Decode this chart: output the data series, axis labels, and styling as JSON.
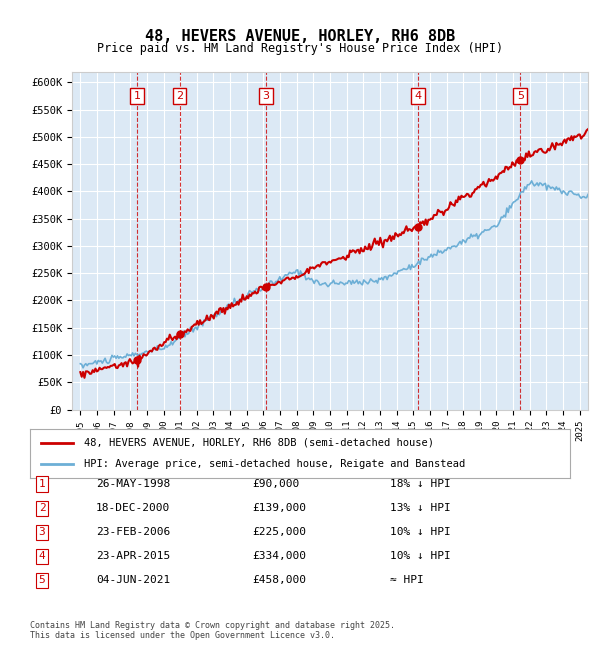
{
  "title": "48, HEVERS AVENUE, HORLEY, RH6 8DB",
  "subtitle": "Price paid vs. HM Land Registry's House Price Index (HPI)",
  "ylabel_ticks": [
    "£0",
    "£50K",
    "£100K",
    "£150K",
    "£200K",
    "£250K",
    "£300K",
    "£350K",
    "£400K",
    "£450K",
    "£500K",
    "£550K",
    "£600K"
  ],
  "ytick_values": [
    0,
    50000,
    100000,
    150000,
    200000,
    250000,
    300000,
    350000,
    400000,
    450000,
    500000,
    550000,
    600000
  ],
  "xlim_start": 1994.5,
  "xlim_end": 2025.5,
  "ylim_min": 0,
  "ylim_max": 620000,
  "background_color": "#dce9f5",
  "plot_bg_color": "#dce9f5",
  "grid_color": "#ffffff",
  "hpi_color": "#6dafd6",
  "price_color": "#cc0000",
  "sale_marker_color": "#cc0000",
  "dashed_line_color": "#cc0000",
  "legend_box_color": "#cc0000",
  "sales": [
    {
      "num": 1,
      "year": 1998.4,
      "price": 90000,
      "date": "26-MAY-1998",
      "note": "18% ↓ HPI"
    },
    {
      "num": 2,
      "year": 2000.96,
      "price": 139000,
      "date": "18-DEC-2000",
      "note": "13% ↓ HPI"
    },
    {
      "num": 3,
      "year": 2006.15,
      "price": 225000,
      "date": "23-FEB-2006",
      "note": "10% ↓ HPI"
    },
    {
      "num": 4,
      "year": 2015.31,
      "price": 334000,
      "date": "23-APR-2015",
      "note": "10% ↓ HPI"
    },
    {
      "num": 5,
      "year": 2021.43,
      "price": 458000,
      "date": "04-JUN-2021",
      "note": "≈ HPI"
    }
  ],
  "legend1_label": "48, HEVERS AVENUE, HORLEY, RH6 8DB (semi-detached house)",
  "legend2_label": "HPI: Average price, semi-detached house, Reigate and Banstead",
  "footer": "Contains HM Land Registry data © Crown copyright and database right 2025.\nThis data is licensed under the Open Government Licence v3.0.",
  "table_rows": [
    [
      "1",
      "26-MAY-1998",
      "£90,000",
      "18% ↓ HPI"
    ],
    [
      "2",
      "18-DEC-2000",
      "£139,000",
      "13% ↓ HPI"
    ],
    [
      "3",
      "23-FEB-2006",
      "£225,000",
      "10% ↓ HPI"
    ],
    [
      "4",
      "23-APR-2015",
      "£334,000",
      "10% ↓ HPI"
    ],
    [
      "5",
      "04-JUN-2021",
      "£458,000",
      "≈ HPI"
    ]
  ]
}
